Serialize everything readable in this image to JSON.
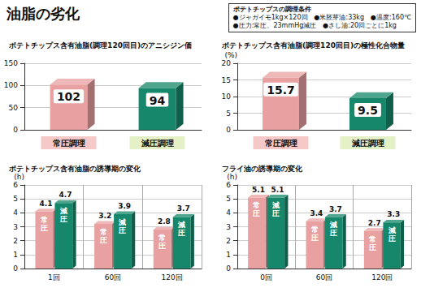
{
  "title": "油脂の劣化",
  "conditions": {
    "title": "ポテトチップスの調理条件",
    "rows": [
      [
        "●ジャガイモ1kg×120回",
        "●米胚芽油:33kg",
        "●温度:160℃"
      ],
      [
        "●圧力:常圧、23mmHg減圧",
        "●さし油:20回ごとに1kg"
      ]
    ]
  },
  "chart_data": [
    {
      "type": "bar",
      "title": "ポテトチップス含有油脂(調理120回目)のアニシジン価",
      "categories": [
        "常圧調理",
        "減圧調理"
      ],
      "values": [
        102,
        94
      ],
      "colors": [
        "#e8a0a0",
        "#16876a"
      ],
      "ylim": [
        0,
        150
      ],
      "yticks": [
        0,
        50,
        100,
        150
      ],
      "grid": true,
      "data_labels": true
    },
    {
      "type": "bar",
      "title": "ポテトチップス含有油脂(調理120回目)の極性化合物量",
      "ylabel": "(%)",
      "categories": [
        "常圧調理",
        "減圧調理"
      ],
      "values": [
        15.7,
        9.5
      ],
      "colors": [
        "#e8a0a0",
        "#16876a"
      ],
      "ylim": [
        0,
        20
      ],
      "yticks": [
        0,
        5,
        10,
        15,
        20
      ],
      "grid": true,
      "data_labels": true
    },
    {
      "type": "bar",
      "title": "ポテトチップス含有油脂の誘導期の変化",
      "ylabel": "(h)",
      "categories": [
        "1回",
        "60回",
        "120回"
      ],
      "series": [
        {
          "name": "常圧",
          "color": "#e8a0a0",
          "values": [
            4.1,
            3.2,
            2.8
          ]
        },
        {
          "name": "減圧",
          "color": "#16876a",
          "values": [
            4.7,
            3.9,
            3.7
          ]
        }
      ],
      "ylim": [
        0,
        6
      ],
      "yticks": [
        0,
        1,
        2,
        3,
        4,
        5,
        6
      ],
      "grid": true,
      "data_labels": true
    },
    {
      "type": "bar",
      "title": "フライ油の誘導期の変化",
      "ylabel": "(h)",
      "categories": [
        "0回",
        "60回",
        "120回"
      ],
      "series": [
        {
          "name": "常圧",
          "color": "#e8a0a0",
          "values": [
            5.1,
            3.4,
            2.7
          ]
        },
        {
          "name": "減圧",
          "color": "#16876a",
          "values": [
            5.1,
            3.7,
            3.3
          ]
        }
      ],
      "ylim": [
        0,
        6
      ],
      "yticks": [
        0,
        1,
        2,
        3,
        4,
        5,
        6
      ],
      "grid": true,
      "data_labels": true
    }
  ]
}
